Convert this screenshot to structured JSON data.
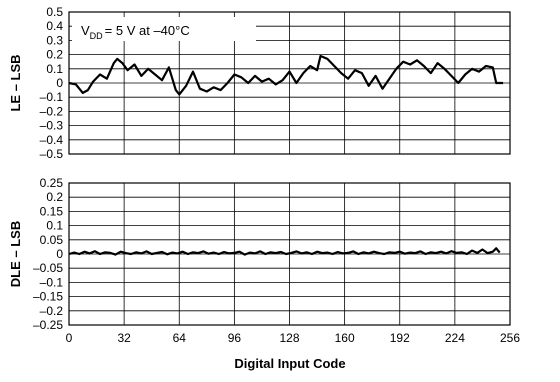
{
  "chart_data": [
    {
      "type": "line",
      "ylabel": "LE – LSB",
      "annotation": "= 5 V at –40°C",
      "annotation_symbol": "V",
      "annotation_subscript": "DD",
      "xlim": [
        0,
        256
      ],
      "ylim": [
        -0.5,
        0.5
      ],
      "x_ticks": [
        0,
        32,
        64,
        96,
        128,
        160,
        192,
        224,
        256
      ],
      "y_ticks": [
        0.5,
        0.4,
        0.3,
        0.2,
        0.1,
        0,
        -0.1,
        -0.2,
        -0.3,
        -0.4,
        -0.5
      ],
      "y_tick_labels": [
        "0.5",
        "0.4",
        "0.3",
        "0.2",
        "0.1",
        "0",
        "–0.1",
        "–0.2",
        "–0.3",
        "–0.4",
        "–0.5"
      ],
      "grid": true,
      "series": [
        {
          "color": "#000000",
          "x": [
            0,
            4,
            8,
            11,
            14,
            18,
            22,
            26,
            28,
            31,
            34,
            38,
            42,
            46,
            50,
            54,
            58,
            62,
            64,
            68,
            72,
            76,
            80,
            84,
            88,
            92,
            96,
            100,
            104,
            108,
            112,
            116,
            120,
            124,
            128,
            132,
            136,
            140,
            144,
            146,
            150,
            154,
            158,
            162,
            166,
            170,
            174,
            178,
            182,
            186,
            190,
            194,
            198,
            202,
            206,
            210,
            214,
            218,
            222,
            226,
            230,
            234,
            238,
            242,
            246,
            248,
            252
          ],
          "values": [
            0.0,
            -0.01,
            -0.07,
            -0.05,
            0.01,
            0.06,
            0.03,
            0.14,
            0.17,
            0.14,
            0.09,
            0.13,
            0.05,
            0.1,
            0.06,
            0.02,
            0.11,
            -0.05,
            -0.08,
            -0.02,
            0.08,
            -0.04,
            -0.06,
            -0.03,
            -0.05,
            0.0,
            0.06,
            0.04,
            0.0,
            0.05,
            0.01,
            0.03,
            -0.01,
            0.02,
            0.08,
            0.0,
            0.07,
            0.12,
            0.09,
            0.19,
            0.17,
            0.12,
            0.07,
            0.03,
            0.09,
            0.07,
            -0.02,
            0.05,
            -0.04,
            0.03,
            0.1,
            0.15,
            0.13,
            0.16,
            0.12,
            0.07,
            0.14,
            0.1,
            0.05,
            0.0,
            0.06,
            0.1,
            0.08,
            0.12,
            0.11,
            0.0,
            0.0
          ]
        }
      ]
    },
    {
      "type": "line",
      "ylabel": "DLE – LSB",
      "xlabel": "Digital Input Code",
      "xlim": [
        0,
        256
      ],
      "ylim": [
        -0.25,
        0.25
      ],
      "x_ticks": [
        0,
        32,
        64,
        96,
        128,
        160,
        192,
        224,
        256
      ],
      "x_tick_labels": [
        "0",
        "32",
        "64",
        "96",
        "128",
        "160",
        "192",
        "224",
        "256"
      ],
      "y_ticks": [
        0.25,
        0.2,
        0.15,
        0.1,
        0.05,
        0,
        -0.05,
        -0.1,
        -0.15,
        -0.2,
        -0.25
      ],
      "y_tick_labels": [
        "0.25",
        "0.2",
        "0.15",
        "0.1",
        "0.05",
        "0",
        "–0.05",
        "–0.1",
        "–0.15",
        "–0.2",
        "–0.25"
      ],
      "grid": true,
      "series": [
        {
          "color": "#000000",
          "x": [
            0,
            3,
            6,
            9,
            12,
            15,
            18,
            21,
            24,
            27,
            30,
            33,
            36,
            39,
            42,
            45,
            48,
            51,
            54,
            57,
            60,
            63,
            66,
            69,
            72,
            75,
            78,
            81,
            84,
            87,
            90,
            93,
            96,
            99,
            102,
            105,
            108,
            111,
            114,
            117,
            120,
            123,
            126,
            129,
            132,
            135,
            138,
            141,
            144,
            147,
            150,
            153,
            156,
            159,
            162,
            165,
            168,
            171,
            174,
            177,
            180,
            183,
            186,
            189,
            192,
            195,
            198,
            201,
            204,
            207,
            210,
            213,
            216,
            219,
            222,
            225,
            228,
            231,
            234,
            237,
            240,
            243,
            246,
            248,
            250
          ],
          "values": [
            0.0,
            0.005,
            0.0,
            0.008,
            0.002,
            0.01,
            0.0,
            0.006,
            0.004,
            -0.002,
            0.008,
            0.003,
            0.0,
            0.006,
            0.002,
            0.009,
            0.0,
            0.004,
            0.007,
            -0.001,
            0.005,
            0.002,
            0.008,
            0.0,
            0.006,
            0.003,
            0.009,
            0.001,
            0.005,
            0.0,
            0.007,
            0.002,
            0.004,
            0.008,
            -0.002,
            0.005,
            0.002,
            0.009,
            0.0,
            0.006,
            0.003,
            0.007,
            0.0,
            0.004,
            0.009,
            0.002,
            0.006,
            0.0,
            0.008,
            0.003,
            0.005,
            0.0,
            0.007,
            0.002,
            0.004,
            0.009,
            0.0,
            0.006,
            0.002,
            0.008,
            0.003,
            0.0,
            0.006,
            0.004,
            0.008,
            0.001,
            0.005,
            0.003,
            0.009,
            0.0,
            0.006,
            0.003,
            0.008,
            0.002,
            0.01,
            0.004,
            0.006,
            0.0,
            0.012,
            0.004,
            0.016,
            0.003,
            0.008,
            0.02,
            0.005
          ]
        }
      ]
    }
  ]
}
